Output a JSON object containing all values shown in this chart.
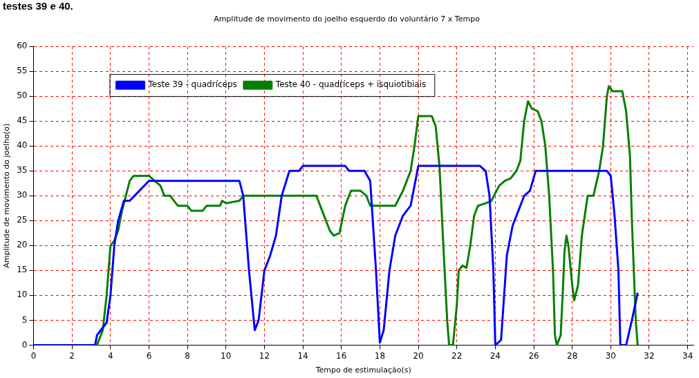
{
  "chart_data": {
    "type": "line",
    "title": "Amplitude de movimento do joelho esquerdo do voluntário 7 x Tempo",
    "xlabel": "Tempo de estimulação(s)",
    "ylabel": "Amplitude de movimento do joelho(o)",
    "annotations": [
      "testes 39 e 40."
    ],
    "xlim": [
      0,
      34.3
    ],
    "xticks": [
      0,
      2,
      4,
      6,
      8,
      10,
      12,
      14,
      16,
      18,
      20,
      22,
      24,
      26,
      28,
      30,
      32,
      34
    ],
    "ylim": [
      0,
      60
    ],
    "yticks": [
      0,
      5,
      10,
      15,
      20,
      25,
      30,
      35,
      40,
      45,
      50,
      55,
      60
    ],
    "grid": true,
    "legend": "top left",
    "marker": "none",
    "line_style": "solid",
    "series": [
      {
        "name": "Teste 39 - quadríceps",
        "color": "#0000ff",
        "x": [
          0,
          3.2,
          3.3,
          3.5,
          3.8,
          4.0,
          4.2,
          4.4,
          4.7,
          5.0,
          5.5,
          6.0,
          10.7,
          10.9,
          11.2,
          11.5,
          11.7,
          12.0,
          12.3,
          12.6,
          12.9,
          13.3,
          13.8,
          14.0,
          16.2,
          16.4,
          17.2,
          17.5,
          17.8,
          18.0,
          18.2,
          18.5,
          18.8,
          19.2,
          19.6,
          19.8,
          20.0,
          23.2,
          23.5,
          23.7,
          23.9,
          24.0,
          24.3,
          24.6,
          24.9,
          25.3,
          25.5,
          25.8,
          26.1,
          29.8,
          30.0,
          30.2,
          30.4,
          30.5,
          30.8,
          31.1,
          31.4
        ],
        "values": [
          0,
          0,
          2,
          3,
          4.5,
          10,
          20,
          25,
          29,
          29,
          31,
          33,
          33,
          30,
          15,
          3,
          5,
          15,
          18,
          22,
          30,
          35,
          35,
          36,
          36,
          35,
          35,
          33,
          15,
          0.5,
          3,
          15,
          22,
          26,
          28,
          32,
          36,
          36,
          35,
          30,
          15,
          0,
          1,
          18,
          24,
          28,
          30,
          31,
          35,
          35,
          34,
          26,
          15,
          0,
          0,
          5,
          10.5
        ]
      },
      {
        "name": "Teste 40 - quadríceps + isquiotibiais",
        "color": "#008000",
        "x": [
          0,
          3.3,
          3.6,
          3.8,
          3.9,
          4.0,
          4.2,
          4.4,
          4.6,
          4.8,
          5.0,
          5.2,
          6.0,
          6.3,
          6.6,
          6.8,
          7.1,
          7.5,
          8.0,
          8.2,
          8.8,
          9.0,
          9.7,
          9.8,
          10.0,
          10.7,
          10.9,
          14.7,
          15.0,
          15.4,
          15.6,
          15.9,
          16.2,
          16.5,
          17.0,
          17.3,
          17.5,
          18.8,
          19.2,
          19.6,
          19.8,
          20.0,
          20.7,
          20.9,
          21.1,
          21.3,
          21.5,
          21.6,
          21.8,
          22.0,
          22.1,
          22.3,
          22.5,
          22.7,
          22.9,
          23.1,
          23.5,
          23.8,
          24.2,
          24.5,
          24.8,
          25.1,
          25.3,
          25.5,
          25.7,
          25.9,
          26.2,
          26.4,
          26.6,
          26.8,
          27.0,
          27.1,
          27.2,
          27.4,
          27.5,
          27.6,
          27.7,
          27.8,
          28.0,
          28.1,
          28.3,
          28.5,
          28.8,
          29.1,
          29.4,
          29.6,
          29.8,
          29.9,
          30.1,
          30.6,
          30.8,
          31.0,
          31.1,
          31.3,
          31.4
        ],
        "values": [
          0,
          0,
          3,
          10,
          15,
          20,
          21,
          23,
          27,
          30,
          33,
          34,
          34,
          33,
          32,
          30,
          30,
          28,
          28,
          27,
          27,
          28,
          28,
          29,
          28.5,
          29,
          30,
          30,
          27,
          23,
          22,
          22.5,
          28,
          31,
          31,
          30,
          28,
          28,
          31,
          35,
          40,
          46,
          46,
          44,
          36,
          20,
          5,
          0,
          0,
          8,
          15,
          16,
          15.5,
          20,
          26,
          28,
          28.5,
          29,
          32,
          33,
          33.5,
          35,
          37,
          45,
          49,
          47.5,
          47,
          45,
          40,
          30,
          15,
          2,
          0,
          2,
          10,
          19,
          22,
          20,
          12,
          9,
          12,
          22,
          30,
          30,
          35,
          40,
          50,
          52,
          51,
          51,
          47,
          38,
          25,
          5,
          0
        ]
      }
    ]
  }
}
